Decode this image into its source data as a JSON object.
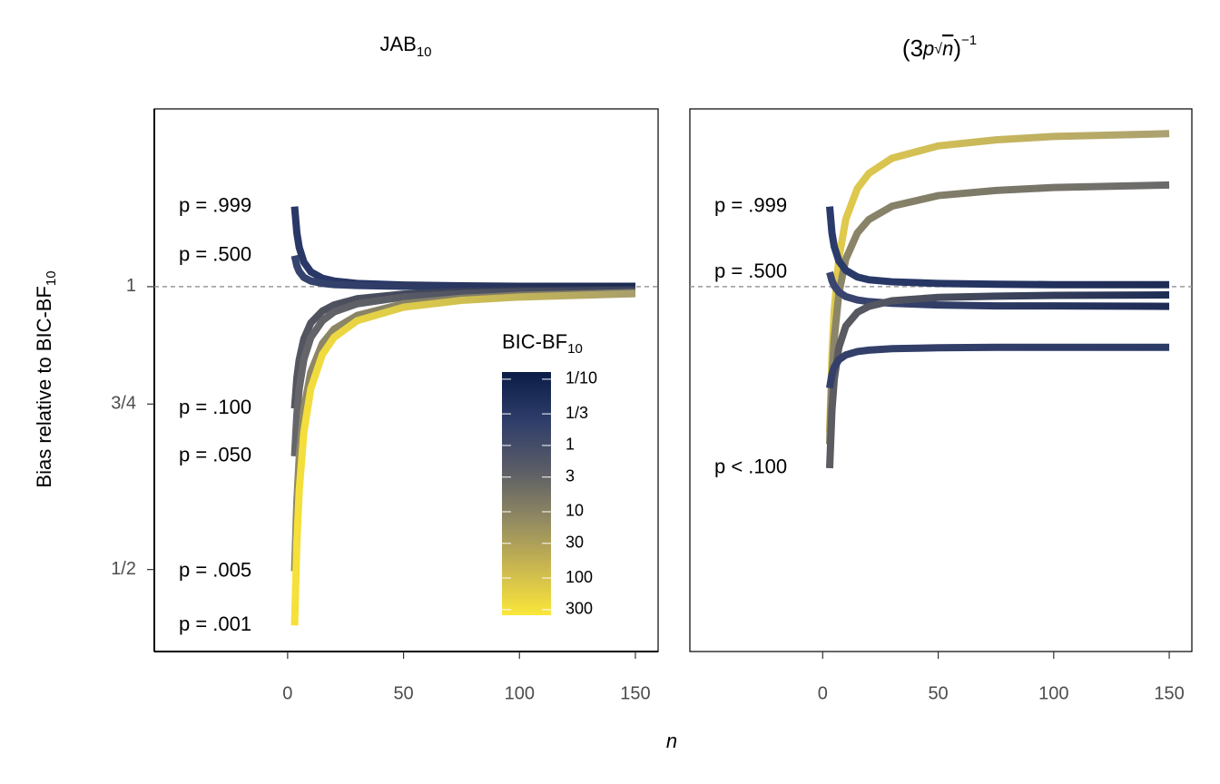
{
  "chart_data": [
    {
      "type": "line",
      "title": "JAB",
      "title_sub": "10",
      "x": [
        3,
        4,
        5,
        7,
        10,
        15,
        20,
        30,
        50,
        75,
        100,
        150
      ],
      "xlim": [
        -57.5,
        159.8
      ],
      "xticks": [
        0,
        50,
        100,
        150
      ],
      "ylim": [
        0.409,
        1.546
      ],
      "log_y": true,
      "yticks": [
        {
          "value": 0.5,
          "label": "1/2"
        },
        {
          "value": 0.75,
          "label": "3/4"
        },
        1
      ],
      "hline": 1,
      "series": [
        {
          "name": "p = .999",
          "colors": [
            "#2a3868",
            "#1c2a52"
          ],
          "values": [
            1.217,
            1.14,
            1.101,
            1.062,
            1.037,
            1.021,
            1.014,
            1.008,
            1.004,
            1.002,
            1.001,
            1.001
          ]
        },
        {
          "name": "p = .500",
          "colors": [
            "#35436e",
            "#1c2a52"
          ],
          "values": [
            1.079,
            1.052,
            1.038,
            1.023,
            1.014,
            1.008,
            1.005,
            1.003,
            1.001,
            1.001,
            1.001,
            1.0
          ]
        },
        {
          "name": "p = .100",
          "colors": [
            "#54565f",
            "#1f2d55"
          ],
          "values": [
            0.742,
            0.8,
            0.836,
            0.88,
            0.915,
            0.942,
            0.956,
            0.971,
            0.982,
            0.988,
            0.991,
            0.994
          ]
        },
        {
          "name": "p = .050",
          "colors": [
            "#66666a",
            "#3a425a"
          ],
          "values": [
            0.66,
            0.732,
            0.779,
            0.837,
            0.883,
            0.92,
            0.94,
            0.959,
            0.975,
            0.983,
            0.988,
            0.992
          ]
        },
        {
          "name": "p = .005",
          "colors": [
            "#8f8865",
            "#76736a"
          ],
          "values": [
            0.498,
            0.592,
            0.658,
            0.741,
            0.811,
            0.87,
            0.901,
            0.932,
            0.959,
            0.972,
            0.979,
            0.986
          ]
        },
        {
          "name": "p = .001",
          "colors": [
            "#f6e03a",
            "#a89e6a"
          ],
          "values": [
            0.436,
            0.536,
            0.607,
            0.7,
            0.779,
            0.847,
            0.883,
            0.92,
            0.951,
            0.967,
            0.975,
            0.983
          ]
        }
      ],
      "colorbar": {
        "title": "BIC-BF",
        "title_sub": "10",
        "lim": [
          0.078,
          364
        ],
        "log": true,
        "colors": [
          "#0b1d46",
          "#2e3d6a",
          "#5a5c66",
          "#8f8862",
          "#c9b650",
          "#fbe73a"
        ],
        "ticks": [
          {
            "value": 0.1,
            "label": "1/10"
          },
          {
            "value": 0.3333,
            "label": "1/3"
          },
          1,
          3,
          10,
          30,
          100,
          300
        ]
      }
    },
    {
      "type": "line",
      "title_parts": [
        "(3",
        "p",
        "√",
        "n",
        ")",
        "−1"
      ],
      "x": [
        3,
        4,
        5,
        7,
        10,
        15,
        20,
        30,
        50,
        75,
        100,
        150
      ],
      "xlim": [
        -57.5,
        159.8
      ],
      "xticks": [
        0,
        50,
        100,
        150
      ],
      "ylim": [
        0.409,
        1.546
      ],
      "log_y": true,
      "hline": 1,
      "series": [
        {
          "colors": [
            "#e2cb4a",
            "#aaa070"
          ],
          "values": [
            0.7,
            0.844,
            0.944,
            1.072,
            1.18,
            1.272,
            1.32,
            1.37,
            1.412,
            1.433,
            1.445,
            1.455
          ]
        },
        {
          "colors": [
            "#8c8668",
            "#6a6a6a"
          ],
          "values": [
            0.68,
            0.799,
            0.881,
            0.984,
            1.07,
            1.141,
            1.179,
            1.218,
            1.25,
            1.266,
            1.275,
            1.283
          ]
        },
        {
          "name": "p = .999",
          "colors": [
            "#2a3a6a",
            "#1e2c55"
          ],
          "values": [
            1.217,
            1.141,
            1.103,
            1.065,
            1.041,
            1.024,
            1.017,
            1.012,
            1.008,
            1.006,
            1.005,
            1.005
          ]
        },
        {
          "name": "p = .500",
          "colors": [
            "#3a4570",
            "#1e2c55"
          ],
          "values": [
            1.036,
            1.015,
            1.002,
            0.987,
            0.976,
            0.968,
            0.964,
            0.96,
            0.956,
            0.954,
            0.954,
            0.953
          ]
        },
        {
          "name": "p < .100",
          "colors": [
            "#5c5c62",
            "#1e2c55"
          ],
          "values": [
            0.641,
            0.739,
            0.797,
            0.862,
            0.908,
            0.939,
            0.953,
            0.966,
            0.974,
            0.977,
            0.979,
            0.98
          ]
        },
        {
          "colors": [
            "#34406a",
            "#2c3a66"
          ],
          "values": [
            0.78,
            0.807,
            0.821,
            0.836,
            0.846,
            0.853,
            0.856,
            0.859,
            0.861,
            0.862,
            0.862,
            0.862
          ]
        }
      ]
    }
  ],
  "ylabel": "Bias relative to BIC-BF",
  "ylabel_sub": "10",
  "xlabel": "n"
}
